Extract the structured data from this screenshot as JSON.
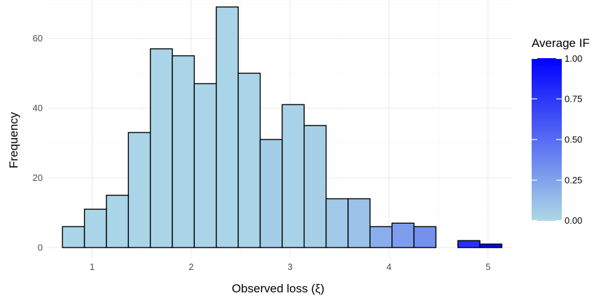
{
  "chart_data": {
    "type": "bar",
    "subtype": "histogram",
    "xlabel": "Observed loss (ξ)",
    "ylabel": "Frequency",
    "xlim": [
      0.55,
      5.25
    ],
    "ylim": [
      -3,
      71
    ],
    "x_ticks": [
      1,
      2,
      3,
      4,
      5
    ],
    "y_ticks": [
      0,
      20,
      40,
      60
    ],
    "bin_width": 0.222,
    "bins": [
      {
        "x0": 0.7,
        "x1": 0.922,
        "count": 6,
        "avg_if": 0.02
      },
      {
        "x0": 0.922,
        "x1": 1.144,
        "count": 11,
        "avg_if": 0.02
      },
      {
        "x0": 1.144,
        "x1": 1.366,
        "count": 15,
        "avg_if": 0.02
      },
      {
        "x0": 1.366,
        "x1": 1.588,
        "count": 33,
        "avg_if": 0.02
      },
      {
        "x0": 1.588,
        "x1": 1.81,
        "count": 57,
        "avg_if": 0.02
      },
      {
        "x0": 1.81,
        "x1": 2.032,
        "count": 55,
        "avg_if": 0.02
      },
      {
        "x0": 2.032,
        "x1": 2.254,
        "count": 47,
        "avg_if": 0.02
      },
      {
        "x0": 2.254,
        "x1": 2.476,
        "count": 69,
        "avg_if": 0.02
      },
      {
        "x0": 2.476,
        "x1": 2.698,
        "count": 50,
        "avg_if": 0.02
      },
      {
        "x0": 2.698,
        "x1": 2.92,
        "count": 31,
        "avg_if": 0.05
      },
      {
        "x0": 2.92,
        "x1": 3.142,
        "count": 41,
        "avg_if": 0.03
      },
      {
        "x0": 3.142,
        "x1": 3.364,
        "count": 35,
        "avg_if": 0.04
      },
      {
        "x0": 3.364,
        "x1": 3.586,
        "count": 14,
        "avg_if": 0.07
      },
      {
        "x0": 3.586,
        "x1": 3.808,
        "count": 14,
        "avg_if": 0.1
      },
      {
        "x0": 3.808,
        "x1": 4.03,
        "count": 6,
        "avg_if": 0.2
      },
      {
        "x0": 4.03,
        "x1": 4.252,
        "count": 7,
        "avg_if": 0.27
      },
      {
        "x0": 4.252,
        "x1": 4.474,
        "count": 6,
        "avg_if": 0.33
      },
      {
        "x0": 4.696,
        "x1": 4.918,
        "count": 2,
        "avg_if": 0.78
      },
      {
        "x0": 4.918,
        "x1": 5.14,
        "count": 1,
        "avg_if": 0.97
      }
    ],
    "legend": {
      "title": "Average IF",
      "placement": "right",
      "ticks": [
        "0.00",
        "0.25",
        "0.50",
        "0.75",
        "1.00"
      ],
      "range": [
        0,
        1
      ],
      "color_low": "#add8e6",
      "color_high": "#0000ff"
    },
    "grid": true
  }
}
